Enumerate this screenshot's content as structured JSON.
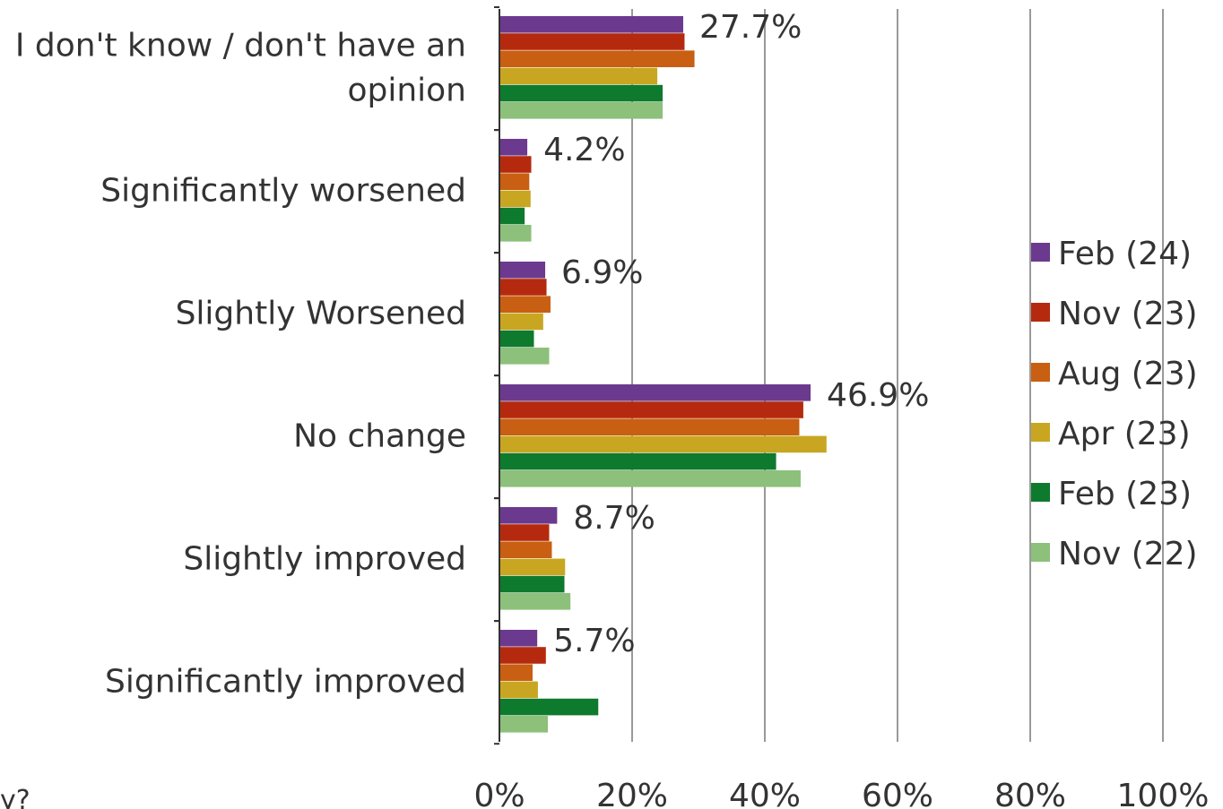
{
  "chart_data": {
    "type": "bar",
    "orientation": "horizontal",
    "title": "",
    "xlabel": "",
    "ylabel": "",
    "xlim": [
      0,
      100
    ],
    "x_ticks": [
      "0%",
      "20%",
      "40%",
      "60%",
      "80%",
      "100%"
    ],
    "grid": "vertical",
    "legend_position": "right",
    "categories": [
      [
        "I don't know / don't have an",
        "opinion"
      ],
      [
        "Significantly worsened"
      ],
      [
        "Slightly Worsened"
      ],
      [
        "No change"
      ],
      [
        "Slightly improved"
      ],
      [
        "Significantly improved"
      ]
    ],
    "series": [
      {
        "name": "Feb (24)",
        "color": "#6B3A8E",
        "values": [
          27.7,
          4.2,
          6.9,
          46.9,
          8.7,
          5.7
        ]
      },
      {
        "name": "Nov (23)",
        "color": "#B52A0E",
        "values": [
          27.9,
          4.8,
          7.1,
          45.8,
          7.5,
          7.0
        ]
      },
      {
        "name": "Aug (23)",
        "color": "#C85F12",
        "values": [
          29.4,
          4.5,
          7.7,
          45.2,
          7.9,
          5.0
        ]
      },
      {
        "name": "Apr (23)",
        "color": "#C8A622",
        "values": [
          23.8,
          4.7,
          6.6,
          49.3,
          9.9,
          5.8
        ]
      },
      {
        "name": "Feb (23)",
        "color": "#0E7A2D",
        "values": [
          24.6,
          3.8,
          5.2,
          41.7,
          9.8,
          14.9
        ]
      },
      {
        "name": "Nov (22)",
        "color": "#8DC07A",
        "values": [
          24.6,
          4.8,
          7.5,
          45.4,
          10.7,
          7.3
        ]
      }
    ],
    "data_labels": [
      "27.7%",
      "4.2%",
      "6.9%",
      "46.9%",
      "8.7%",
      "5.7%"
    ]
  },
  "stray_text": "y?"
}
